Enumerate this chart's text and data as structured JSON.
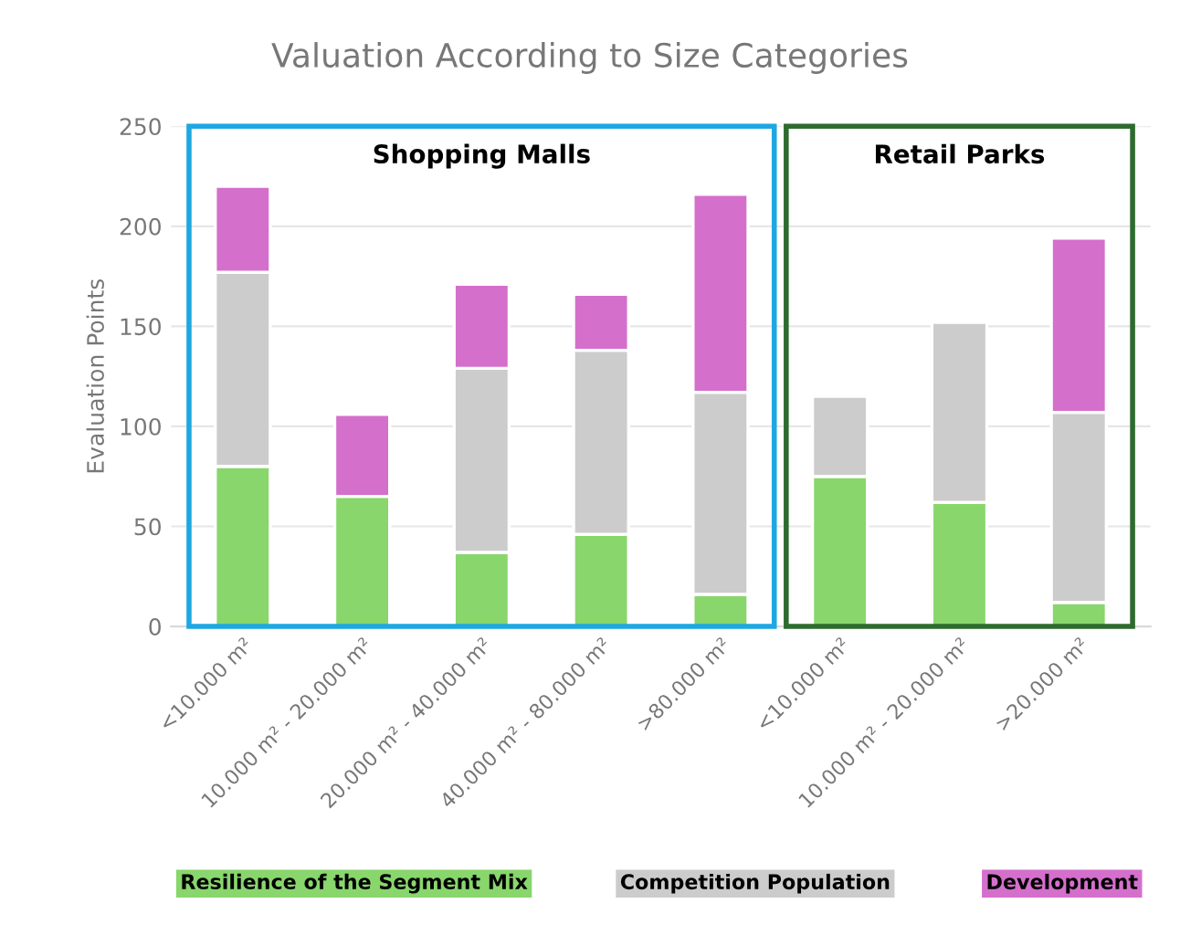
{
  "chart_data": {
    "type": "bar",
    "title": "Valuation According to Size Categories",
    "ylabel": "Evaluation Points",
    "categories": [
      "<10.000 m²",
      "10.000 m² - 20.000 m²",
      "20.000 m² - 40.000 m²",
      "40.000 m² - 80.000 m²",
      ">80.000 m²",
      "<10.000 m²",
      "10.000 m² - 20.000 m²",
      ">20.000 m²"
    ],
    "stacked": true,
    "series": [
      {
        "name": "Resilience of the Segment Mix",
        "color": "#88d66c",
        "values": [
          80,
          65,
          37,
          46,
          16,
          75,
          62,
          12
        ]
      },
      {
        "name": "Competition Population",
        "color": "#cccccc",
        "values": [
          97,
          null,
          92,
          92,
          101,
          40,
          90,
          95
        ]
      },
      {
        "name": "Development",
        "color": "#d46fcc",
        "values": [
          43,
          41,
          42,
          28,
          99,
          null,
          null,
          87
        ]
      }
    ],
    "ylim": [
      0,
      250
    ],
    "yticks": [
      0,
      50,
      100,
      150,
      200,
      250
    ],
    "grid": "y",
    "legend": "bottom",
    "annotations": [
      "Shopping Malls",
      "Retail Parks"
    ]
  }
}
